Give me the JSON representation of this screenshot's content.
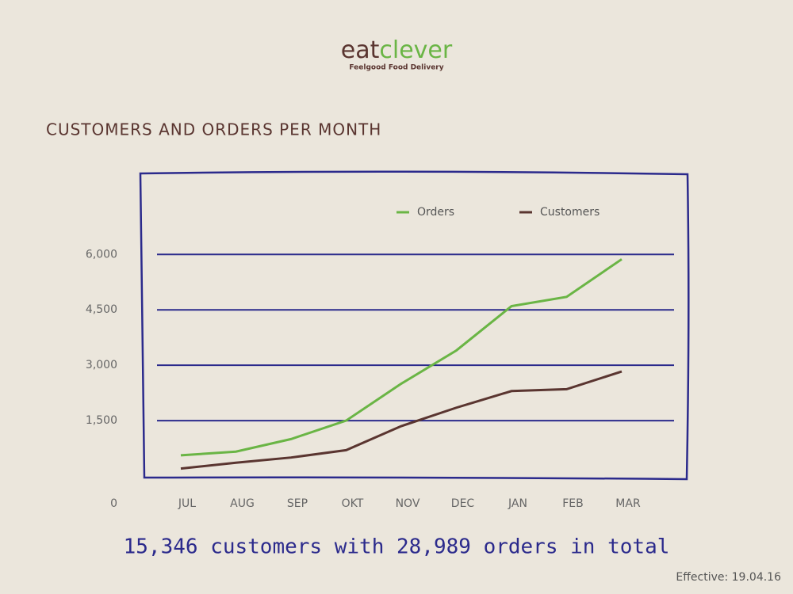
{
  "logo": {
    "first": "eat",
    "second": "clever",
    "tagline": "Feelgood Food Delivery"
  },
  "chart_data": {
    "type": "line",
    "title": "CUSTOMERS AND ORDERS PER MONTH",
    "categories": [
      "JUL",
      "AUG",
      "SEP",
      "OKT",
      "NOV",
      "DEC",
      "JAN",
      "FEB",
      "MAR"
    ],
    "series": [
      {
        "name": "Orders",
        "color": "#6ab545",
        "values": [
          560,
          660,
          1000,
          1500,
          2500,
          3400,
          4600,
          4850,
          5870
        ]
      },
      {
        "name": "Customers",
        "color": "#5a3530",
        "values": [
          200,
          360,
          500,
          700,
          1350,
          1850,
          2300,
          2350,
          2830
        ]
      }
    ],
    "ylim": [
      0,
      8000
    ],
    "yticks": [
      0,
      {
        "value": 1500,
        "label": "1,500"
      },
      {
        "value": 3000,
        "label": "3,000"
      },
      {
        "value": 4500,
        "label": "4,500"
      },
      {
        "value": 6000,
        "label": "6,000"
      }
    ],
    "grid": true,
    "legend": "top-right",
    "annotation": "15,346 customers with 28,989 orders in total",
    "footnote": "Effective: 19.04.16"
  }
}
